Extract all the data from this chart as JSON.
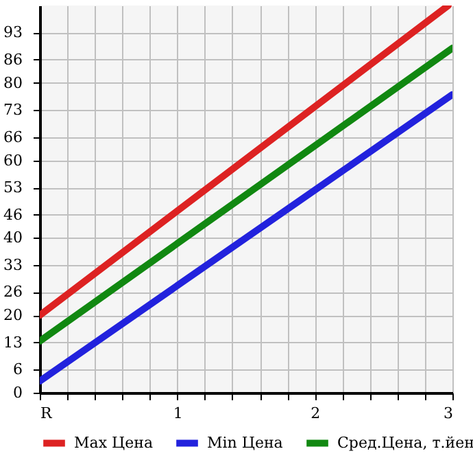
{
  "chart_data": {
    "type": "line",
    "series": [
      {
        "name": "Max Цена",
        "color": "#dd2222",
        "x": [
          0,
          2.97
        ],
        "values": [
          20,
          100
        ]
      },
      {
        "name": "Min Цена",
        "color": "#2222dd",
        "x": [
          0,
          3
        ],
        "values": [
          3,
          77
        ]
      },
      {
        "name": "Сред.Цена, т.йен",
        "color": "#118811",
        "x": [
          0,
          3
        ],
        "values": [
          13.3,
          89
        ]
      }
    ],
    "xlim": [
      0,
      3
    ],
    "xticks": [
      {
        "value": 0,
        "label": "R"
      },
      {
        "value": 0.2,
        "label": null
      },
      {
        "value": 0.4,
        "label": null
      },
      {
        "value": 0.6,
        "label": null
      },
      {
        "value": 0.8,
        "label": null
      },
      1,
      {
        "value": 1.2,
        "label": null
      },
      {
        "value": 1.4,
        "label": null
      },
      {
        "value": 1.6,
        "label": null
      },
      {
        "value": 1.8,
        "label": null
      },
      2,
      {
        "value": 2.2,
        "label": null
      },
      {
        "value": 2.4,
        "label": null
      },
      {
        "value": 2.6,
        "label": null
      },
      {
        "value": 2.8,
        "label": null
      },
      3
    ],
    "ylim": [
      0,
      100
    ],
    "yticks": [
      0,
      6,
      13,
      20,
      26,
      33,
      40,
      46,
      53,
      60,
      66,
      73,
      80,
      86,
      93
    ],
    "grid": true,
    "legend": "bottom",
    "marker": "none",
    "line_style": "solid"
  }
}
